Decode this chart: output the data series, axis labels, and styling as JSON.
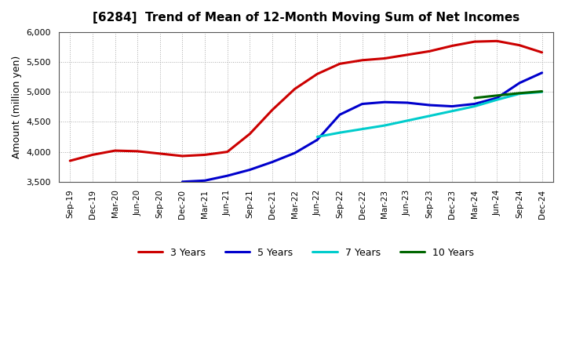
{
  "title": "[6284]  Trend of Mean of 12-Month Moving Sum of Net Incomes",
  "ylabel": "Amount (million yen)",
  "ylim": [
    3500,
    6000
  ],
  "yticks": [
    3500,
    4000,
    4500,
    5000,
    5500,
    6000
  ],
  "x_labels": [
    "Sep-19",
    "Dec-19",
    "Mar-20",
    "Jun-20",
    "Sep-20",
    "Dec-20",
    "Mar-21",
    "Jun-21",
    "Sep-21",
    "Dec-21",
    "Mar-22",
    "Jun-22",
    "Sep-22",
    "Dec-22",
    "Mar-23",
    "Jun-23",
    "Sep-23",
    "Dec-23",
    "Mar-24",
    "Jun-24",
    "Sep-24",
    "Dec-24"
  ],
  "series": {
    "3 Years": {
      "color": "#cc0000",
      "data_x": [
        0,
        1,
        2,
        3,
        4,
        5,
        6,
        7,
        8,
        9,
        10,
        11,
        12,
        13,
        14,
        15,
        16,
        17,
        18,
        19,
        20,
        21
      ],
      "data_y": [
        3850,
        3950,
        4020,
        4010,
        3970,
        3930,
        3950,
        4000,
        4300,
        4700,
        5050,
        5300,
        5470,
        5530,
        5560,
        5620,
        5680,
        5770,
        5840,
        5850,
        5780,
        5660
      ]
    },
    "5 Years": {
      "color": "#0000cc",
      "data_x": [
        5,
        6,
        7,
        8,
        9,
        10,
        11,
        12,
        13,
        14,
        15,
        16,
        17,
        18,
        19,
        20,
        21
      ],
      "data_y": [
        3500,
        3520,
        3600,
        3700,
        3830,
        3980,
        4200,
        4620,
        4800,
        4830,
        4820,
        4780,
        4760,
        4800,
        4900,
        5150,
        5320
      ]
    },
    "7 Years": {
      "color": "#00cccc",
      "data_x": [
        11,
        12,
        13,
        14,
        15,
        16,
        17,
        18,
        19,
        20,
        21
      ],
      "data_y": [
        4250,
        4320,
        4380,
        4440,
        4520,
        4600,
        4680,
        4760,
        4870,
        4970,
        5000
      ]
    },
    "10 Years": {
      "color": "#006600",
      "data_x": [
        18,
        19,
        20,
        21
      ],
      "data_y": [
        4900,
        4940,
        4980,
        5010
      ]
    }
  },
  "legend_order": [
    "3 Years",
    "5 Years",
    "7 Years",
    "10 Years"
  ],
  "background_color": "#ffffff",
  "grid_color": "#aaaaaa"
}
